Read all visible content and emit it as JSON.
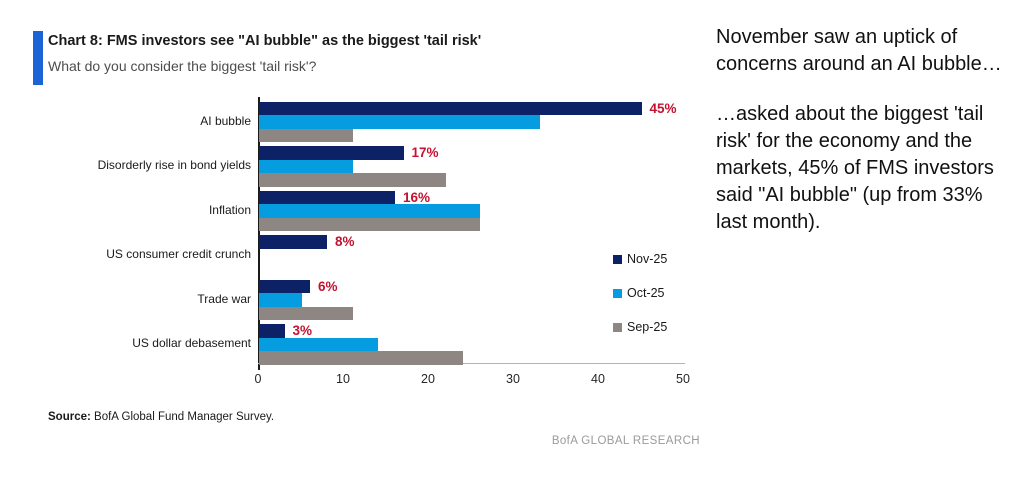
{
  "header": {
    "title": "Chart 8: FMS investors see \"AI bubble\" as the biggest 'tail risk'",
    "subtitle": "What do you consider the biggest 'tail risk'?",
    "accent_color": "#1b64d6"
  },
  "chart_data": {
    "type": "bar",
    "orientation": "horizontal",
    "title": "Chart 8: FMS investors see \"AI bubble\" as the biggest 'tail risk'",
    "subtitle": "What do you consider the biggest 'tail risk'?",
    "categories": [
      "AI bubble",
      "Disorderly rise in bond yields",
      "Inflation",
      "US consumer credit crunch",
      "Trade war",
      "US dollar debasement"
    ],
    "series": [
      {
        "name": "Nov-25",
        "color": "#0d2167",
        "values": [
          45,
          17,
          16,
          8,
          6,
          3
        ]
      },
      {
        "name": "Oct-25",
        "color": "#069de0",
        "values": [
          33,
          11,
          26,
          0,
          5,
          14
        ]
      },
      {
        "name": "Sep-25",
        "color": "#8e8683",
        "values": [
          11,
          22,
          26,
          0,
          11,
          24
        ]
      }
    ],
    "data_labels": [
      "45%",
      "17%",
      "16%",
      "8%",
      "6%",
      "3%"
    ],
    "data_label_color": "#c41230",
    "xlim": [
      0,
      50
    ],
    "x_ticks": [
      0,
      10,
      20,
      30,
      40,
      50
    ],
    "grid": false,
    "legend_position": "right-inside"
  },
  "source": {
    "label": "Source:",
    "text": " BofA Global Fund Manager Survey."
  },
  "footer": {
    "brand": "BofA GLOBAL RESEARCH"
  },
  "commentary": {
    "para1": "November saw an uptick of concerns around an AI bubble…",
    "para2": "…asked about the biggest 'tail risk' for the economy and the markets, 45% of FMS investors said \"AI bubble\" (up from 33% last month)."
  }
}
